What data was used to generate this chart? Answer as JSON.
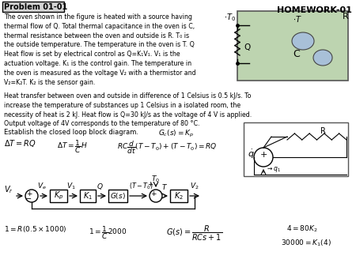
{
  "title": "HOMEWORK-01",
  "problem_label": "Problem 01-01",
  "bg_color": "#ffffff",
  "body1": [
    "The oven shown in the figure is heated with a source having",
    "thermal flow of Q. Total thermal capacitance in the oven is C,",
    "thermal resistance between the oven and outside is R. T₀ is",
    "the outside temperature. The temperature in the oven is T. Q",
    "Heat flow is set by electrical control as Q=K₁V₁. V₁ is the",
    "actuation voltage. K₁ is the control gain. The temperature in",
    "the oven is measured as the voltage V₂ with a thermistor and",
    "V₂=K₂T. K₂ is the sensor gain."
  ],
  "body2": [
    "Heat transfer between oven and outside in difference of 1 Celsius is 0.5 kJ/s. To",
    "increase the temperature of substances up 1 Celsius in a isolated room, the",
    "necessity of heat is 2 kJ. Heat flow is Q=30 kJ/s as the voltage of 4 V is applied.",
    "Output voltage of 4V corresponds to the temperature of 80 °C."
  ]
}
